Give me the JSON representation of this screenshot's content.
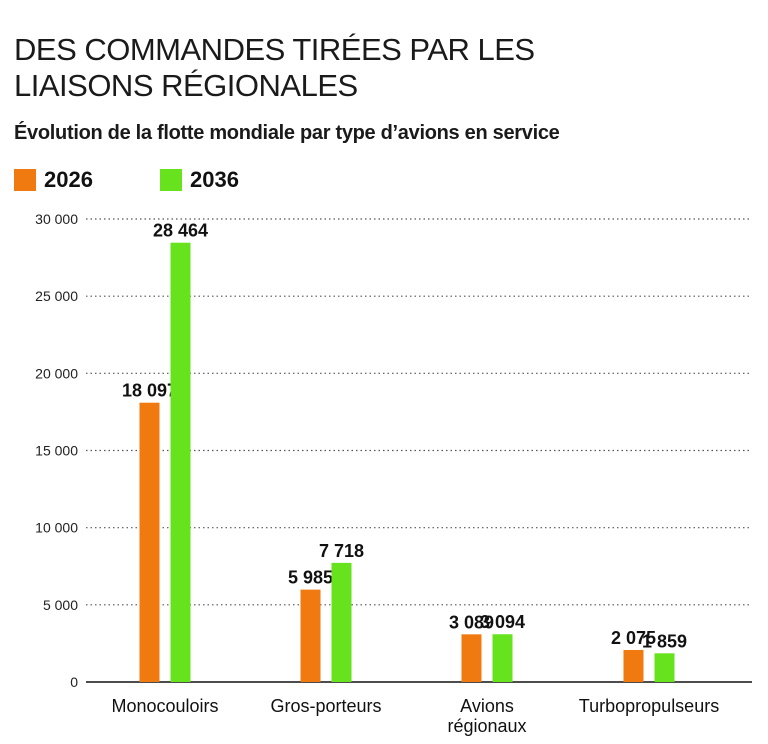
{
  "header": {
    "title_line1": "DES COMMANDES TIRÉES PAR LES",
    "title_line2": "LIAISONS RÉGIONALES",
    "subtitle": "Évolution de la flotte mondiale par type d’avions en service"
  },
  "colors": {
    "series_2026": "#f07a10",
    "series_2036": "#66e31c",
    "grid": "#555555",
    "axis": "#111111"
  },
  "chart_data": {
    "type": "bar",
    "title": "DES COMMANDES TIRÉES PAR LES LIAISONS RÉGIONALES",
    "subtitle": "Évolution de la flotte mondiale par type d’avions en service",
    "categories": [
      [
        "Monocouloirs"
      ],
      [
        "Gros-porteurs"
      ],
      [
        "Avions",
        "régionaux"
      ],
      [
        "Turbopropulseurs"
      ]
    ],
    "series": [
      {
        "name": "2026",
        "values": [
          18097,
          5985,
          3089,
          2075
        ],
        "labels": [
          "18 097",
          "5 985",
          "3 089",
          "2 075"
        ]
      },
      {
        "name": "2036",
        "values": [
          28464,
          7718,
          3094,
          1859
        ],
        "labels": [
          "28 464",
          "7 718",
          "3 094",
          "1 859"
        ]
      }
    ],
    "ylim": [
      0,
      30000
    ],
    "yticks": [
      0,
      5000,
      10000,
      15000,
      20000,
      25000,
      30000
    ],
    "ytick_labels": [
      "0",
      "5 000",
      "10 000",
      "15 000",
      "20 000",
      "25 000",
      "30 000"
    ],
    "grid": true,
    "grid_style": "dotted",
    "legend_position": "top-left",
    "xlabel": "",
    "ylabel": ""
  }
}
